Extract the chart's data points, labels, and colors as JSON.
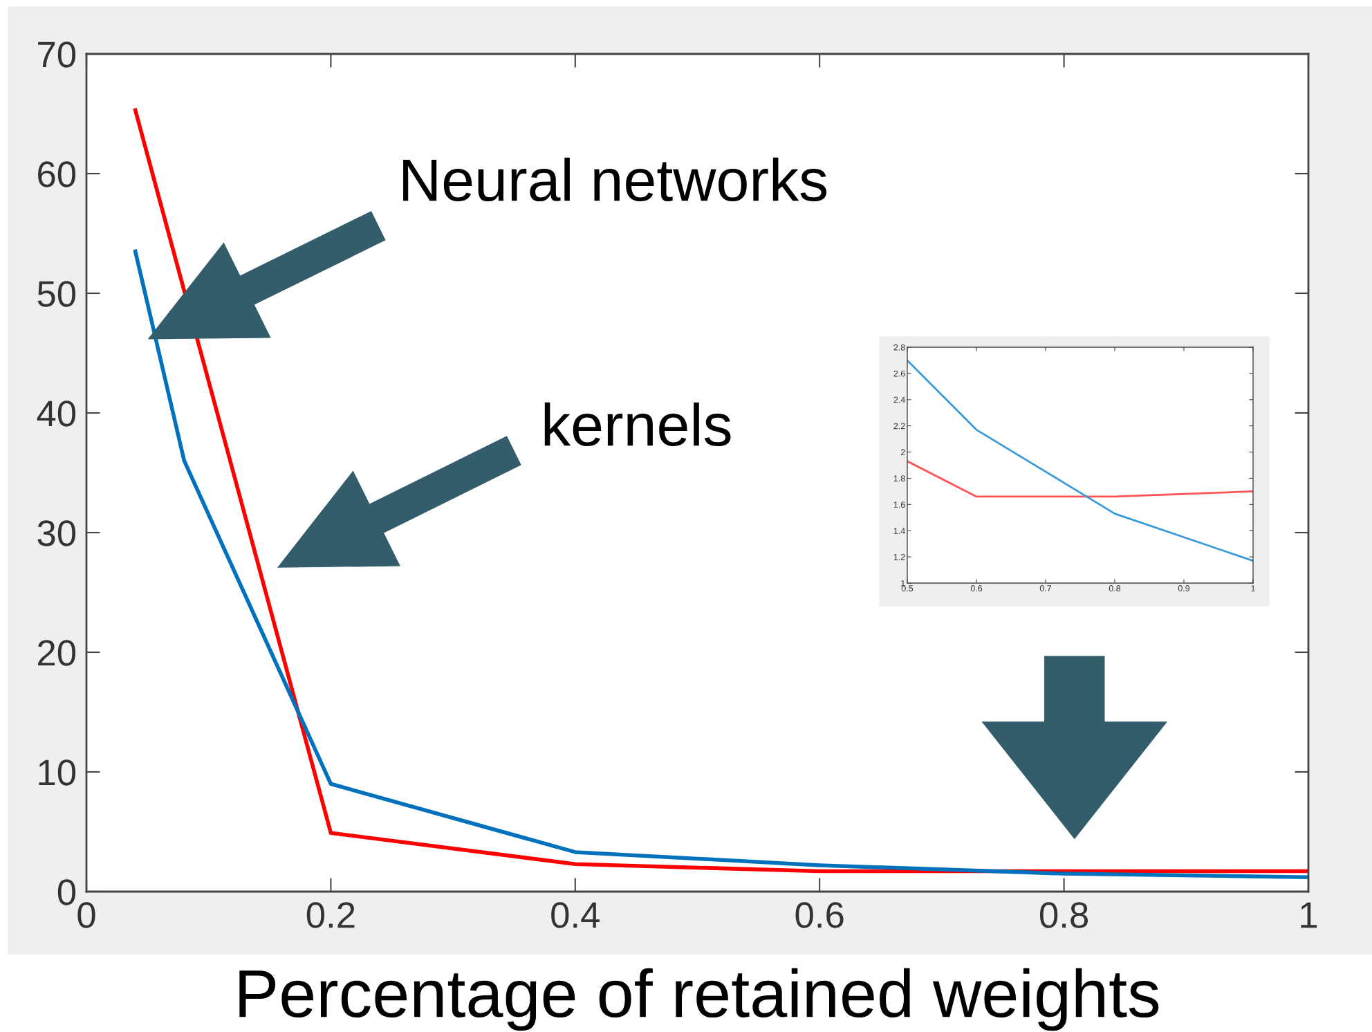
{
  "chart_data": [
    {
      "type": "line",
      "xlabel": "Percentage of retained weights",
      "xlim": [
        0,
        1
      ],
      "xticks": [
        0,
        0.2,
        0.4,
        0.6,
        0.8,
        1
      ],
      "ylim": [
        0,
        70
      ],
      "yticks": [
        0,
        10,
        20,
        30,
        40,
        50,
        60,
        70
      ],
      "grid": false,
      "legend": false,
      "line_style": "solid",
      "annotations": [
        "Neural networks",
        "kernels"
      ],
      "series": [
        {
          "color": "#ff0000",
          "x": [
            0.04,
            0.2,
            0.4,
            0.6,
            0.8,
            1
          ],
          "values": [
            65.3,
            4.9,
            2.3,
            1.7,
            1.7,
            1.7
          ]
        },
        {
          "color": "#0072bd",
          "x": [
            0.04,
            0.08,
            0.2,
            0.4,
            0.6,
            0.8,
            1
          ],
          "values": [
            53.5,
            36,
            9,
            3.3,
            2.2,
            1.5,
            1.2
          ]
        }
      ]
    },
    {
      "type": "line",
      "xlim": [
        0.5,
        1
      ],
      "xticks": [
        0.5,
        0.6,
        0.7,
        0.8,
        0.9,
        1
      ],
      "ylim": [
        1,
        2.8
      ],
      "yticks": [
        1,
        1.2,
        1.4,
        1.6,
        1.8,
        2,
        2.2,
        2.4,
        2.6,
        2.8
      ],
      "grid": false,
      "legend": false,
      "line_style": "solid",
      "series": [
        {
          "color": "#ff5555",
          "x": [
            0.5,
            0.6,
            0.8,
            1
          ],
          "values": [
            1.93,
            1.66,
            1.66,
            1.7
          ]
        },
        {
          "color": "#3a9ad9",
          "x": [
            0.5,
            0.6,
            0.8,
            1
          ],
          "values": [
            2.7,
            2.17,
            1.53,
            1.17
          ]
        }
      ]
    }
  ]
}
